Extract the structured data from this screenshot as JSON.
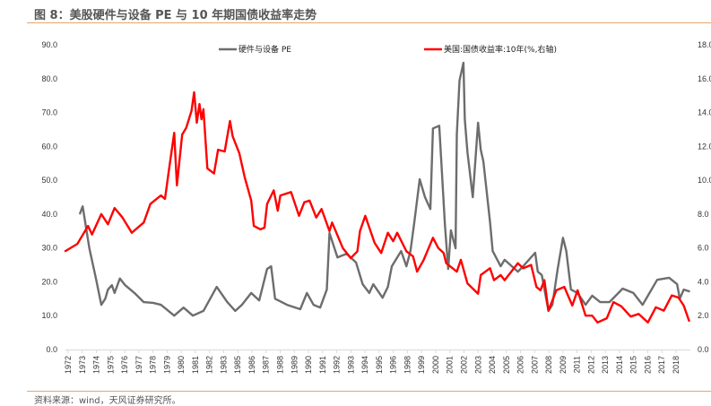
{
  "title": "图 8：美股硬件与设备 PE 与 10 年期国债收益率走势",
  "source": "资料来源：wind，天风证券研究所。",
  "chart_data": {
    "type": "line",
    "title": "图 8：美股硬件与设备 PE 与 10 年期国债收益率走势",
    "xlabel": "",
    "ylabel_left": "",
    "ylabel_right": "",
    "x_tick_labels": [
      "1972",
      "1973",
      "1974",
      "1975",
      "1976",
      "1977",
      "1978",
      "1979",
      "1980",
      "1981",
      "1982",
      "1983",
      "1985",
      "1986",
      "1987",
      "1988",
      "1989",
      "1990",
      "1991",
      "1992",
      "1993",
      "1994",
      "1995",
      "1996",
      "1998",
      "1999",
      "2000",
      "2001",
      "2002",
      "2003",
      "2004",
      "2005",
      "2006",
      "2007",
      "2008",
      "2009",
      "2011",
      "2012",
      "2013",
      "2014",
      "2015",
      "2016",
      "2017",
      "2018"
    ],
    "y_left_ticks": [
      "0.0",
      "10.0",
      "20.0",
      "30.0",
      "40.0",
      "50.0",
      "60.0",
      "70.0",
      "80.0",
      "90.0"
    ],
    "y_right_ticks": [
      "0.0",
      "2.0",
      "4.0",
      "6.0",
      "8.0",
      "10.0",
      "12.0",
      "14.0",
      "16.0",
      "18.0"
    ],
    "ylim_left": [
      0,
      90
    ],
    "ylim_right": [
      0,
      18
    ],
    "xlim": [
      1971.8,
      2018.9
    ],
    "grid": false,
    "legend_placement": "top",
    "series": [
      {
        "name": "硬件与设备 PE",
        "axis": "left",
        "color": "#6d6d6d",
        "x": [
          1972.9,
          1973.1,
          1973.6,
          1974.1,
          1974.5,
          1974.8,
          1975.0,
          1975.3,
          1975.5,
          1975.9,
          1976.3,
          1977.0,
          1977.7,
          1978.4,
          1979.0,
          1980.0,
          1980.7,
          1981.4,
          1982.2,
          1983.2,
          1984.0,
          1984.6,
          1985.1,
          1985.8,
          1986.4,
          1987.0,
          1987.3,
          1987.6,
          1988.5,
          1989.5,
          1990.0,
          1990.5,
          1991.0,
          1991.5,
          1991.7,
          1992.3,
          1993.0,
          1993.7,
          1994.2,
          1994.7,
          1995.0,
          1995.7,
          1996.1,
          1996.4,
          1997.1,
          1997.5,
          1997.8,
          1998.1,
          1998.5,
          1998.9,
          1999.3,
          1999.5,
          1999.97,
          2000.1,
          2000.4,
          2000.65,
          2000.85,
          2001.2,
          2001.3,
          2001.5,
          2001.8,
          2001.9,
          2002.1,
          2002.5,
          2002.9,
          2003.1,
          2003.3,
          2003.8,
          2004.0,
          2004.6,
          2004.9,
          2005.9,
          2006.3,
          2007.2,
          2007.4,
          2007.7,
          2008.2,
          2008.5,
          2008.9,
          2009.3,
          2009.55,
          2009.9,
          2010.4,
          2011.0,
          2011.5,
          2012.1,
          2012.8,
          2013.8,
          2014.6,
          2015.3,
          2016.4,
          2017.3,
          2017.9,
          2018.1,
          2018.4,
          2018.8
        ],
        "values": [
          40.2,
          42.3,
          30.0,
          21.0,
          13.2,
          15.0,
          17.7,
          19.0,
          16.7,
          21.0,
          19.0,
          16.7,
          14.0,
          13.8,
          13.2,
          10.0,
          12.4,
          10.0,
          11.4,
          18.5,
          14.0,
          11.4,
          13.2,
          16.7,
          14.5,
          23.8,
          24.6,
          15.0,
          13.2,
          11.9,
          16.7,
          13.2,
          12.4,
          17.7,
          34.4,
          27.2,
          28.3,
          25.7,
          19.3,
          16.7,
          19.3,
          15.3,
          18.5,
          24.6,
          29.1,
          24.6,
          29.1,
          37.8,
          50.3,
          45.0,
          41.5,
          65.3,
          66.1,
          57.4,
          37.0,
          23.8,
          35.2,
          29.9,
          63.5,
          79.4,
          84.7,
          68.0,
          58.2,
          45.0,
          67.0,
          59.0,
          55.6,
          37.8,
          29.1,
          24.6,
          26.5,
          23.0,
          24.6,
          28.6,
          23.0,
          22.0,
          11.4,
          13.2,
          23.8,
          33.0,
          29.1,
          17.7,
          16.7,
          13.2,
          15.9,
          14.0,
          14.0,
          18.0,
          16.7,
          13.2,
          20.6,
          21.2,
          19.3,
          15.0,
          17.7,
          17.2
        ]
      },
      {
        "name": "美国:国债收益率:10年(%,右轴)",
        "axis": "right",
        "color": "#ff0000",
        "x": [
          1971.8,
          1972.7,
          1973.5,
          1973.8,
          1974.5,
          1975.0,
          1975.5,
          1976.1,
          1976.8,
          1977.7,
          1978.2,
          1979.0,
          1979.3,
          1979.6,
          1980.0,
          1980.2,
          1980.6,
          1980.9,
          1981.3,
          1981.5,
          1981.7,
          1981.9,
          1982.05,
          1982.2,
          1982.5,
          1983.0,
          1983.3,
          1983.8,
          1984.2,
          1984.4,
          1984.9,
          1985.3,
          1985.8,
          1986.0,
          1986.5,
          1986.8,
          1987.0,
          1987.5,
          1987.8,
          1988.0,
          1988.8,
          1989.4,
          1989.8,
          1990.2,
          1990.7,
          1991.1,
          1991.7,
          1991.9,
          1992.7,
          1993.3,
          1993.8,
          1994.0,
          1994.4,
          1995.1,
          1995.6,
          1996.1,
          1996.5,
          1996.8,
          1997.5,
          1998.0,
          1998.3,
          1998.8,
          1999.5,
          1999.9,
          2000.3,
          2000.5,
          2001.3,
          2001.6,
          2002.1,
          2002.9,
          2003.1,
          2003.8,
          2004.1,
          2004.6,
          2004.9,
          2005.9,
          2006.3,
          2006.9,
          2007.3,
          2007.6,
          2007.9,
          2008.2,
          2008.8,
          2009.4,
          2010.0,
          2010.4,
          2011.0,
          2011.5,
          2011.9,
          2012.6,
          2013.1,
          2013.7,
          2014.4,
          2015.0,
          2015.7,
          2016.3,
          2016.9,
          2017.5,
          2018.0,
          2018.4,
          2018.8
        ],
        "values": [
          5.82,
          6.24,
          7.3,
          6.8,
          8.0,
          7.4,
          8.36,
          7.8,
          6.9,
          7.5,
          8.6,
          9.1,
          8.9,
          10.6,
          12.8,
          9.7,
          12.7,
          13.1,
          14.1,
          15.2,
          13.4,
          14.5,
          13.6,
          14.2,
          10.7,
          10.4,
          11.8,
          11.7,
          13.5,
          12.6,
          11.6,
          10.2,
          8.8,
          7.3,
          7.1,
          7.2,
          8.6,
          9.4,
          8.2,
          9.1,
          9.3,
          7.9,
          8.7,
          8.8,
          7.8,
          8.3,
          7.0,
          7.5,
          6.0,
          5.4,
          5.8,
          7.0,
          7.9,
          6.3,
          5.7,
          6.9,
          6.4,
          6.9,
          5.8,
          5.5,
          4.6,
          5.3,
          6.6,
          6.0,
          5.7,
          5.1,
          4.6,
          5.3,
          3.9,
          3.3,
          4.4,
          4.8,
          4.1,
          4.4,
          4.1,
          5.1,
          4.8,
          5.0,
          3.7,
          3.5,
          4.1,
          2.3,
          3.5,
          3.7,
          2.6,
          3.5,
          2.0,
          2.0,
          1.6,
          1.85,
          2.8,
          2.55,
          1.95,
          2.1,
          1.6,
          2.5,
          2.3,
          3.2,
          3.07,
          2.6,
          1.7
        ]
      }
    ]
  }
}
